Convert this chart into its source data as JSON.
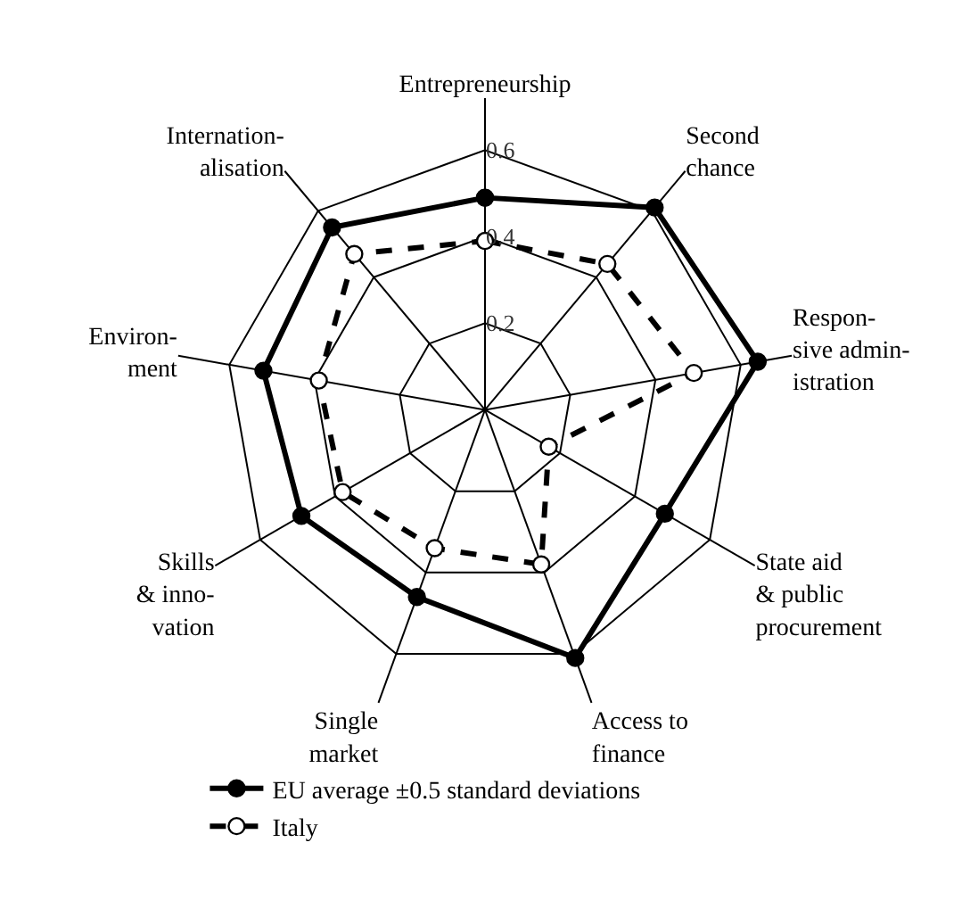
{
  "chart_data": {
    "type": "radar",
    "categories": [
      "Entrepreneurship",
      "Second\nchance",
      "Respon-\nsive admin-\nistration",
      "State aid\n& public\nprocurement",
      "Access to\nfinance",
      "Single\nmarket",
      "Skills\n& inno-\nvation",
      "Environ-\nment",
      "Internation-\nalisation"
    ],
    "series": [
      {
        "name": "EU average ±0.5 standard deviations",
        "color": "#000000",
        "line_style": "solid",
        "values": [
          0.49,
          0.61,
          0.64,
          0.48,
          0.61,
          0.46,
          0.49,
          0.52,
          0.55
        ]
      },
      {
        "name": "Italy",
        "color": "#000000",
        "line_style": "dashed",
        "values": [
          0.39,
          0.44,
          0.49,
          0.17,
          0.38,
          0.34,
          0.38,
          0.39,
          0.47
        ]
      }
    ],
    "ylim": [
      0,
      0.72
    ],
    "yticks": [
      0.2,
      0.4,
      0.6
    ],
    "grid": true,
    "marker": "circle",
    "legend": "bottom"
  }
}
